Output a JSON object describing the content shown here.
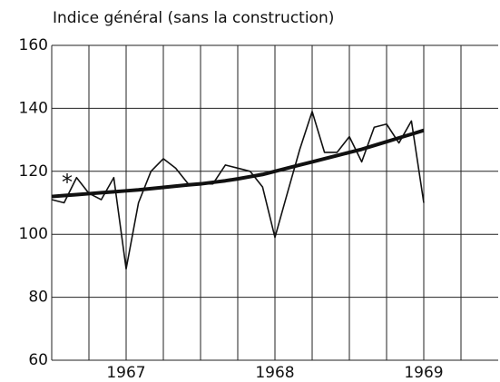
{
  "chart_data": {
    "type": "line",
    "title": "Indice général (sans la construction)",
    "annotations": [
      "*"
    ],
    "x": [
      1967,
      1967.083,
      1967.167,
      1967.25,
      1967.333,
      1967.417,
      1967.5,
      1967.583,
      1967.667,
      1967.75,
      1967.833,
      1967.917,
      1968,
      1968.083,
      1968.167,
      1968.25,
      1968.333,
      1968.417,
      1968.5,
      1968.583,
      1968.667,
      1968.75,
      1968.833,
      1968.917,
      1969,
      1969.083,
      1969.167,
      1969.25,
      1969.333,
      1969.417,
      1969.5
    ],
    "series": [
      {
        "color": "#111111",
        "values": [
          111,
          110,
          118,
          113,
          111,
          118,
          89,
          110,
          120,
          124,
          121,
          116,
          116,
          116,
          122,
          121,
          120,
          115,
          99,
          113,
          127,
          139,
          126,
          126,
          131,
          123,
          134,
          135,
          129,
          136,
          110
        ]
      },
      {
        "color": "#111111",
        "values": [
          112,
          112.3,
          112.6,
          112.9,
          113.2,
          113.5,
          113.8,
          114.1,
          114.5,
          114.9,
          115.3,
          115.7,
          116,
          116.5,
          117,
          117.6,
          118.3,
          119,
          120,
          121,
          122,
          123,
          124,
          125,
          126,
          127,
          128.2,
          129.4,
          130.6,
          131.8,
          133
        ]
      }
    ],
    "xlim": [
      1967,
      1970
    ],
    "xticks": [
      {
        "value": 1967.5,
        "label": "1967"
      },
      {
        "value": 1968.5,
        "label": "1968"
      },
      {
        "value": 1969.5,
        "label": "1969"
      }
    ],
    "xgrid": [
      1967.25,
      1967.5,
      1967.75,
      1968,
      1968.25,
      1968.5,
      1968.75,
      1969,
      1969.25,
      1969.5,
      1969.75
    ],
    "ylim": [
      60,
      160
    ],
    "yticks": [
      60,
      80,
      100,
      120,
      140,
      160
    ],
    "grid": true
  }
}
